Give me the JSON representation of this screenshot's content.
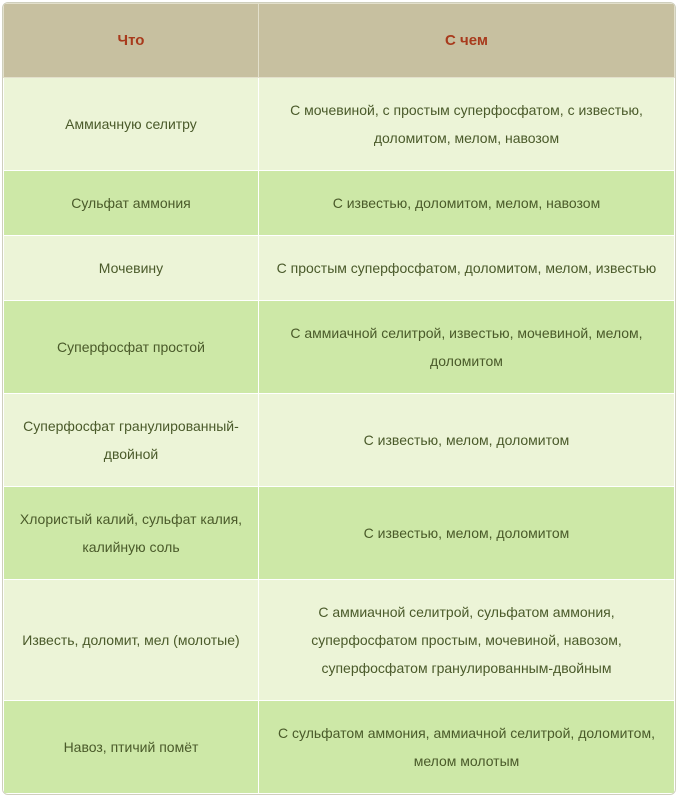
{
  "table": {
    "type": "table",
    "header_bg": "#c7c0a0",
    "header_color": "#a83a1c",
    "row_odd_bg": "#ecf4d7",
    "row_even_bg": "#cde8a7",
    "text_color": "#4a5a2a",
    "border_color": "#e3e0cc",
    "font_family": "Verdana",
    "header_fontsize": 15,
    "cell_fontsize": 14,
    "line_height": 2.0,
    "col_widths_pct": [
      38,
      62
    ],
    "columns": [
      "Что",
      "С чем"
    ],
    "rows": [
      [
        "Аммиачную селитру",
        "С мочевиной, с простым суперфосфатом, с известью, доломитом, мелом, навозом"
      ],
      [
        "Сульфат аммония",
        "С известью, доломитом, мелом, навозом"
      ],
      [
        "Мочевину",
        "С простым суперфосфатом, доломитом, мелом, известью"
      ],
      [
        "Суперфосфат простой",
        "С аммиачной селитрой, известью, мочевиной, мелом, доломитом"
      ],
      [
        "Суперфосфат гранулированный-двойной",
        "С известью, мелом, доломитом"
      ],
      [
        "Хлористый калий, сульфат калия, калийную соль",
        "С известью, мелом, доломитом"
      ],
      [
        "Известь, доломит, мел (молотые)",
        "С аммиачной селитрой, сульфатом аммония, суперфосфатом простым, мочевиной, навозом, суперфосфатом гранулированным-двойным"
      ],
      [
        "Навоз, птичий помёт",
        "С сульфатом аммония, аммиачной селитрой, доломитом, мелом молотым"
      ]
    ]
  }
}
